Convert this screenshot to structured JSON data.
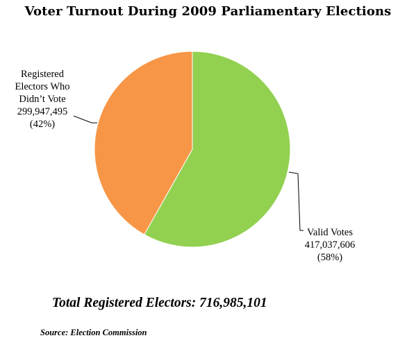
{
  "chart_data": {
    "type": "pie",
    "title": "Voter Turnout During 2009 Parliamentary Elections",
    "slices": [
      {
        "label_lines": [
          "Valid Votes"
        ],
        "value": 417037606,
        "value_text": "417,037,606",
        "percent_text": "(58%)",
        "color": "#92d050"
      },
      {
        "label_lines": [
          "Registered",
          "Electors Who",
          "Didn’t Vote"
        ],
        "value": 299947495,
        "value_text": "299,947,495",
        "percent_text": "(42%)",
        "color": "#f79646"
      }
    ],
    "start_angle_deg": 0,
    "direction": "clockwise",
    "legend": "none"
  },
  "footer": {
    "total_text": "Total Registered Electors: 716,985,101",
    "source_text": "Source: Election Commission"
  }
}
